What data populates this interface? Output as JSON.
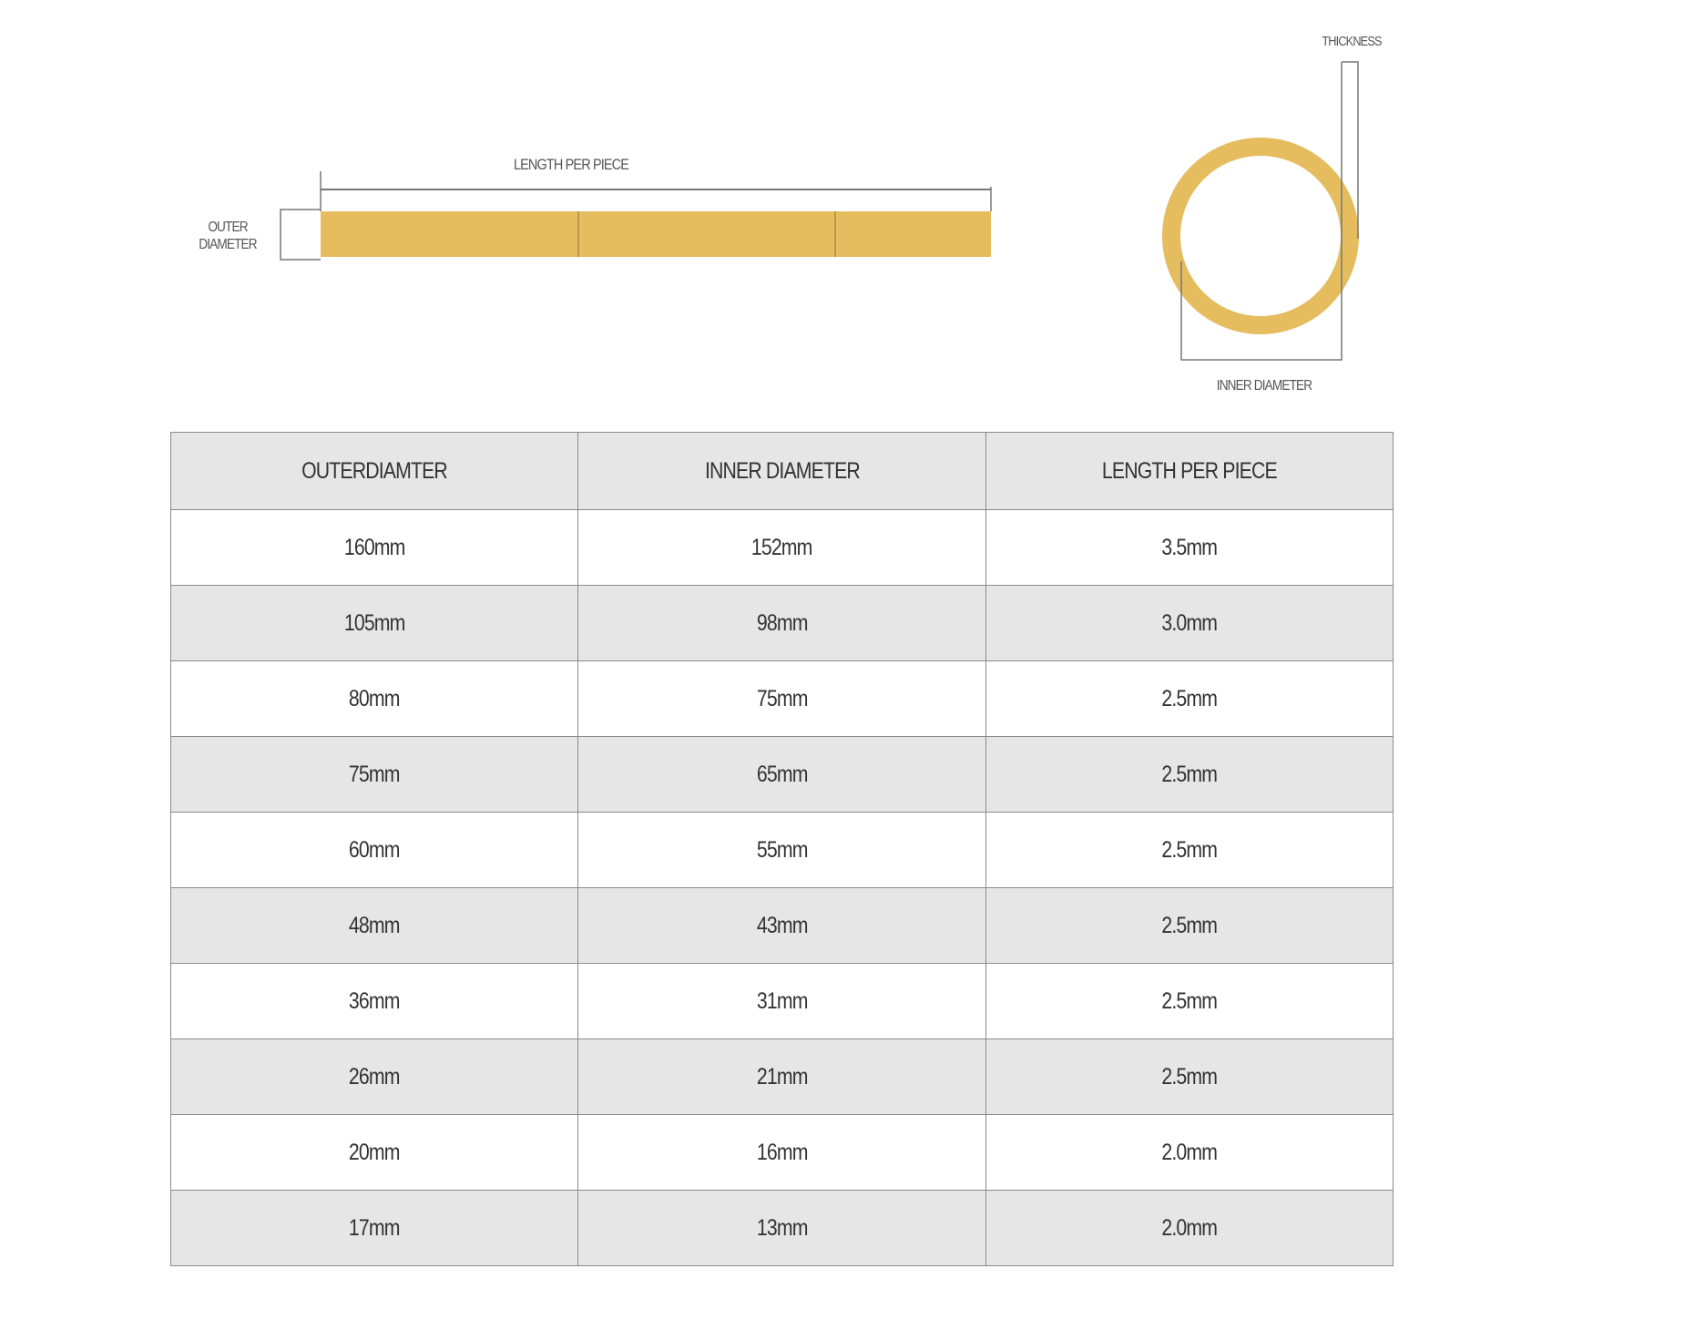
{
  "diagram": {
    "length_label": "LENGTH PER PIECE",
    "outer_diameter_label": "OUTER DIAMETER",
    "thickness_label": "THICKNESS",
    "inner_diameter_label": "INNER DIAMETER",
    "ring_color": "#e5bd5f"
  },
  "table": {
    "headers": [
      "OUTERDIAMTER",
      "INNER DIAMETER",
      "LENGTH PER PIECE"
    ],
    "rows": [
      [
        "160mm",
        "152mm",
        "3.5mm"
      ],
      [
        "105mm",
        "98mm",
        "3.0mm"
      ],
      [
        "80mm",
        "75mm",
        "2.5mm"
      ],
      [
        "75mm",
        "65mm",
        "2.5mm"
      ],
      [
        "60mm",
        "55mm",
        "2.5mm"
      ],
      [
        "48mm",
        "43mm",
        "2.5mm"
      ],
      [
        "36mm",
        "31mm",
        "2.5mm"
      ],
      [
        "26mm",
        "21mm",
        "2.5mm"
      ],
      [
        "20mm",
        "16mm",
        "2.0mm"
      ],
      [
        "17mm",
        "13mm",
        "2.0mm"
      ]
    ]
  }
}
